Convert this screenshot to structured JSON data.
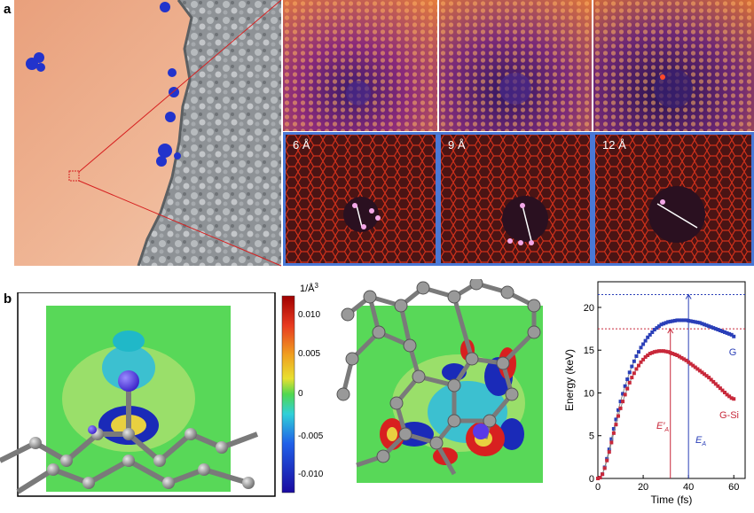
{
  "panels": {
    "a_label": "a",
    "b_label": "b"
  },
  "sim_labels": [
    "6 Å",
    "9 Å",
    "12 Å"
  ],
  "colorbar": {
    "unit": "1/Å",
    "unit_exp": "3",
    "ticks": [
      "0.010",
      "0.005",
      "0",
      "-0.005",
      "-0.010"
    ]
  },
  "chart_data": {
    "type": "scatter",
    "xlabel": "Time (fs)",
    "ylabel": "Energy (keV)",
    "xlim": [
      0,
      65
    ],
    "ylim": [
      0,
      23
    ],
    "xticks": [
      "0",
      "20",
      "40",
      "60"
    ],
    "yticks": [
      "0",
      "5",
      "10",
      "15",
      "20"
    ],
    "series": [
      {
        "name": "G",
        "color": "#2a3fb8",
        "x": [
          0,
          1,
          2,
          3,
          4,
          5,
          6,
          7,
          8,
          9,
          10,
          11,
          12,
          13,
          14,
          15,
          16,
          17,
          18,
          19,
          20,
          21,
          22,
          23,
          24,
          25,
          26,
          27,
          28,
          29,
          30,
          31,
          32,
          33,
          34,
          35,
          36,
          37,
          38,
          39,
          40,
          41,
          42,
          43,
          44,
          45,
          46,
          47,
          48,
          49,
          50,
          51,
          52,
          53,
          54,
          55,
          56,
          57,
          58,
          59,
          60
        ],
        "y": [
          0,
          0.1,
          0.5,
          1.3,
          2.3,
          3.4,
          4.6,
          5.8,
          6.9,
          8.0,
          9.0,
          9.9,
          10.8,
          11.6,
          12.4,
          13.1,
          13.7,
          14.3,
          14.8,
          15.3,
          15.7,
          16.1,
          16.5,
          16.8,
          17.1,
          17.4,
          17.6,
          17.8,
          18.0,
          18.1,
          18.2,
          18.3,
          18.35,
          18.4,
          18.45,
          18.5,
          18.5,
          18.5,
          18.5,
          18.5,
          18.45,
          18.4,
          18.35,
          18.3,
          18.25,
          18.2,
          18.1,
          18.0,
          17.9,
          17.8,
          17.7,
          17.6,
          17.5,
          17.4,
          17.3,
          17.2,
          17.1,
          17.0,
          16.9,
          16.8,
          16.6
        ]
      },
      {
        "name": "G-Si",
        "color": "#c8283a",
        "x": [
          0,
          1,
          2,
          3,
          4,
          5,
          6,
          7,
          8,
          9,
          10,
          11,
          12,
          13,
          14,
          15,
          16,
          17,
          18,
          19,
          20,
          21,
          22,
          23,
          24,
          25,
          26,
          27,
          28,
          29,
          30,
          31,
          32,
          33,
          34,
          35,
          36,
          37,
          38,
          39,
          40,
          41,
          42,
          43,
          44,
          45,
          46,
          47,
          48,
          49,
          50,
          51,
          52,
          53,
          54,
          55,
          56,
          57,
          58,
          59,
          60
        ],
        "y": [
          0,
          0.1,
          0.5,
          1.2,
          2.1,
          3.1,
          4.2,
          5.3,
          6.3,
          7.3,
          8.2,
          9.0,
          9.8,
          10.5,
          11.2,
          11.8,
          12.3,
          12.8,
          13.2,
          13.6,
          13.9,
          14.2,
          14.4,
          14.6,
          14.7,
          14.8,
          14.85,
          14.9,
          14.9,
          14.9,
          14.85,
          14.8,
          14.7,
          14.6,
          14.5,
          14.4,
          14.25,
          14.1,
          13.95,
          13.8,
          13.6,
          13.4,
          13.2,
          13.0,
          12.8,
          12.6,
          12.4,
          12.2,
          12.0,
          11.8,
          11.55,
          11.3,
          11.05,
          10.8,
          10.55,
          10.3,
          10.05,
          9.8,
          9.6,
          9.4,
          9.3
        ]
      }
    ],
    "thresholds": [
      {
        "label": "E_A",
        "series": "G",
        "x": 40,
        "y": 21.5
      },
      {
        "label": "E'_A",
        "series": "G-Si",
        "x": 32,
        "y": 17.5
      }
    ],
    "annotations": {
      "ea_main": "E",
      "ea_sub": "A",
      "ea_prime_main": "E",
      "ea_prime_mark": "′",
      "ea_prime_sub": "A"
    }
  }
}
